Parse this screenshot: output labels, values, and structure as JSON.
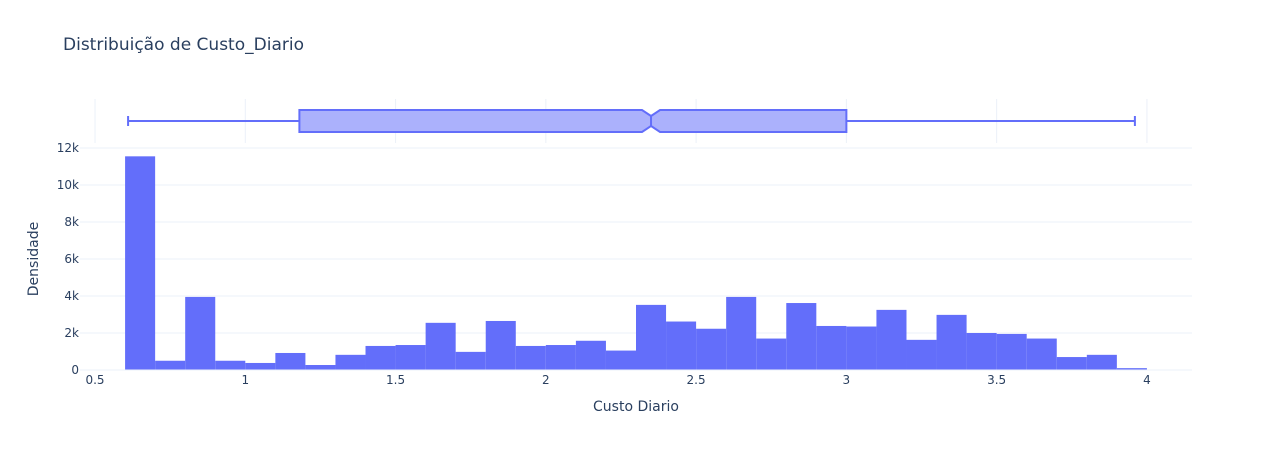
{
  "chart_data": {
    "type": "histogram",
    "title": "Distribuição de Custo_Diario",
    "xlabel": "Custo Diario",
    "ylabel": "Densidade",
    "xlim": [
      0.45,
      4.15
    ],
    "ylim": [
      0,
      12000
    ],
    "x_ticks": [
      0.5,
      1,
      1.5,
      2,
      2.5,
      3,
      3.5,
      4
    ],
    "x_tick_labels": [
      "0.5",
      "1",
      "1.5",
      "2",
      "2.5",
      "3",
      "3.5",
      "4"
    ],
    "y_ticks": [
      0,
      2000,
      4000,
      6000,
      8000,
      10000,
      12000
    ],
    "y_tick_labels": [
      "0",
      "2k",
      "4k",
      "6k",
      "8k",
      "10k",
      "12k"
    ],
    "bin_start": 0.6,
    "bin_width": 0.1,
    "values": [
      11550,
      500,
      3950,
      500,
      380,
      920,
      270,
      820,
      1300,
      1350,
      2550,
      980,
      2650,
      1300,
      1350,
      1580,
      1050,
      3520,
      2620,
      2230,
      3950,
      1700,
      3620,
      2380,
      2350,
      3250,
      1630,
      2980,
      2000,
      1950,
      1700,
      700,
      820,
      100
    ],
    "grid": true,
    "color": "#636efa",
    "boxplot": {
      "min": 0.61,
      "q1": 1.18,
      "median": 2.35,
      "q3": 3.0,
      "max": 3.96,
      "notch_low": 2.32,
      "notch_high": 2.38,
      "fill": "#abb1fc",
      "line": "#636efa"
    }
  }
}
